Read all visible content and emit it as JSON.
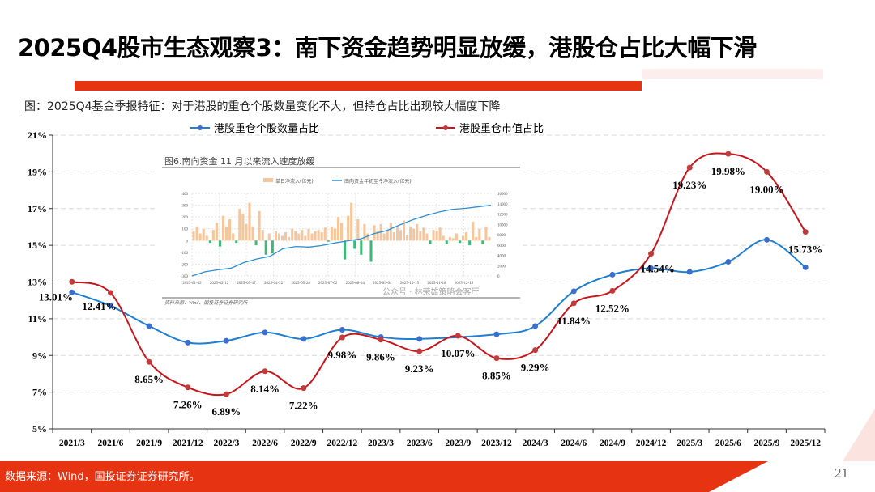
{
  "header": {
    "title": "2025Q4股市生态观察3：南下资金趋势明显放缓，港股仓占比大幅下滑",
    "subtitle": "图：2025Q4基金季报特征：对于港股的重仓个股数量变化不大，但持仓占比出现较大幅度下降"
  },
  "footer": {
    "source": "数据来源：Wind，国投证券证券研究所。",
    "page_number": "21"
  },
  "colors": {
    "accent": "#e63312",
    "blue_series": "#1f7fd0",
    "red_series": "#c8161d"
  },
  "chart_data": [
    {
      "type": "line",
      "categories": [
        "2021/3",
        "2021/6",
        "2021/9",
        "2021/12",
        "2022/3",
        "2022/6",
        "2022/9",
        "2022/12",
        "2023/3",
        "2023/6",
        "2023/9",
        "2023/12",
        "2024/3",
        "2024/6",
        "2024/9",
        "2024/12",
        "2025/3",
        "2025/6",
        "2025/9",
        "2025/12"
      ],
      "yticks": [
        "5%",
        "7%",
        "9%",
        "11%",
        "13%",
        "15%",
        "17%",
        "19%",
        "21%"
      ],
      "ylim": [
        5,
        21
      ],
      "grid": true,
      "legend_position": "top",
      "series": [
        {
          "name": "港股重仓个股数量占比",
          "color": "#1f7fd0",
          "values": [
            12.44,
            11.7,
            10.6,
            9.7,
            9.8,
            10.25,
            9.9,
            10.4,
            10.0,
            9.9,
            null,
            10.15,
            10.6,
            12.5,
            13.4,
            13.75,
            13.55,
            14.1,
            15.3,
            13.8
          ]
        },
        {
          "name": "港股重仓市值占比",
          "color": "#c8161d",
          "values": [
            13.01,
            12.41,
            8.65,
            7.26,
            6.89,
            8.14,
            7.22,
            9.98,
            9.86,
            9.23,
            10.07,
            8.85,
            9.29,
            11.84,
            12.52,
            14.54,
            19.23,
            19.98,
            19.0,
            15.73
          ],
          "labels": [
            "13.01%",
            "12.41%",
            "8.65%",
            "7.26%",
            "6.89%",
            "8.14%",
            "7.22%",
            "9.98%",
            "9.86%",
            "9.23%",
            "10.07%",
            "8.85%",
            "9.29%",
            "11.84%",
            "12.52%",
            "14.54%",
            "19.23%",
            "19.98%",
            "19.00%",
            "15.73%"
          ]
        }
      ]
    },
    {
      "type": "bar+line",
      "title": "图6.南向资金 11 月以来流入速度放缓",
      "legend": [
        "单日净流入(亿元)",
        "南向资金年初至今净流入(亿元)"
      ],
      "xticks": [
        "2025-01-02",
        "2025-02-12",
        "2025-03-17",
        "2025-04-22",
        "2025-05-28",
        "2025-07-02",
        "2025-08-04",
        "2025-09-04",
        "2025-10-15",
        "2025-11-18",
        "2025-12-19"
      ],
      "yticks_left": [
        "400",
        "300",
        "200",
        "100",
        "0",
        "-100",
        "-200",
        "-300"
      ],
      "yticks_right": [
        "16000",
        "14000",
        "12000",
        "10000",
        "8000",
        "6000",
        "4000",
        "2000",
        "0"
      ],
      "ylim_left": [
        -300,
        400
      ],
      "ylim_right": [
        0,
        16000
      ],
      "bar_values": [
        80,
        120,
        60,
        100,
        40,
        -20,
        90,
        150,
        -50,
        210,
        120,
        180,
        60,
        -20,
        270,
        230,
        140,
        320,
        120,
        -40,
        250,
        90,
        -120,
        60,
        -110,
        80,
        60,
        40,
        70,
        30,
        100,
        80,
        60,
        90,
        40,
        100,
        60,
        80,
        90,
        70,
        110,
        -10,
        120,
        100,
        200,
        150,
        -160,
        210,
        320,
        -70,
        180,
        -120,
        140,
        60,
        -180,
        130,
        80,
        140,
        60,
        90,
        150,
        70,
        110,
        90,
        170,
        50,
        120,
        100,
        140,
        80,
        110,
        60,
        -30,
        90,
        80,
        110,
        40,
        -30,
        30,
        20,
        60,
        -20,
        40,
        70,
        -40,
        160,
        30,
        100,
        -30,
        120,
        30
      ],
      "line_values": [
        0,
        800,
        1200,
        1500,
        2600,
        3300,
        3800,
        5300,
        5700,
        5600,
        5900,
        6400,
        6800,
        7200,
        8200,
        8800,
        9900,
        10900,
        11700,
        12400,
        12900,
        13100,
        13400,
        13700
      ],
      "source": "资料来源：Wind、国投证券证券研究所",
      "watermark": "公众号 · 林荣雄策略会客厅"
    }
  ]
}
